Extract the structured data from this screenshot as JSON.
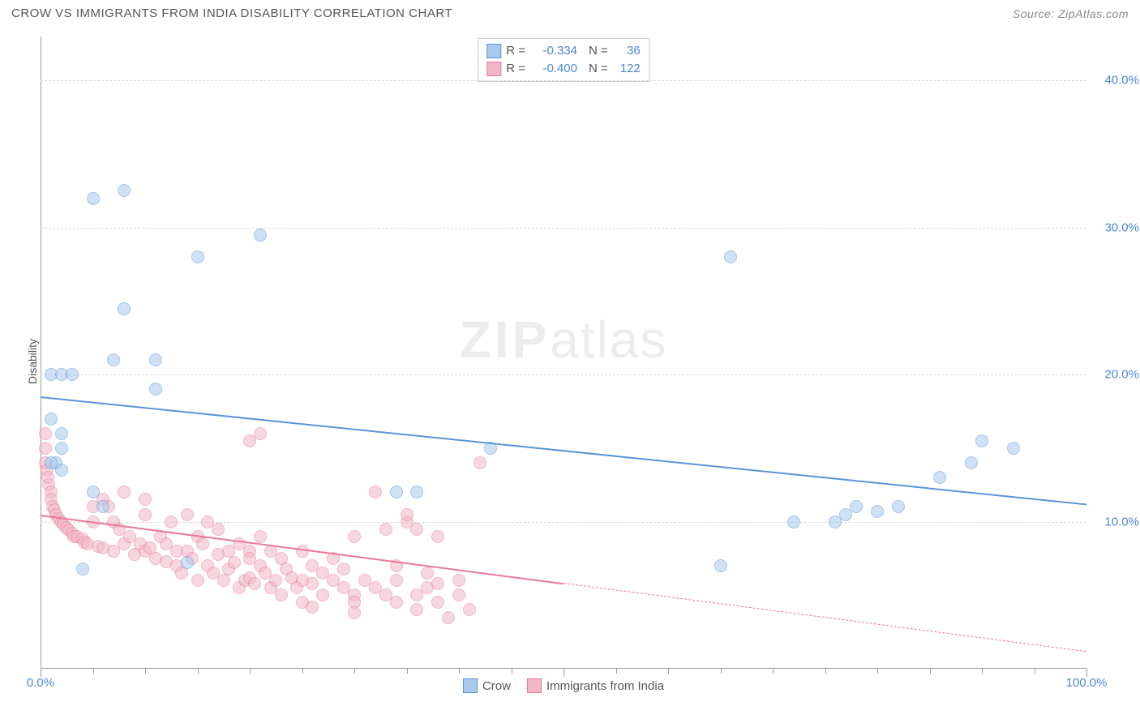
{
  "title": "CROW VS IMMIGRANTS FROM INDIA DISABILITY CORRELATION CHART",
  "source_label": "Source: ZipAtlas.com",
  "watermark_zip": "ZIP",
  "watermark_atlas": "atlas",
  "ylabel": "Disability",
  "chart": {
    "type": "scatter",
    "background_color": "#ffffff",
    "grid_color": "#d8d8d8",
    "axis_color": "#999999",
    "tick_label_color": "#4a86d8",
    "xlim": [
      0,
      100
    ],
    "ylim": [
      0,
      43
    ],
    "yticks": [
      {
        "v": 10,
        "label": "10.0%"
      },
      {
        "v": 20,
        "label": "20.0%"
      },
      {
        "v": 30,
        "label": "30.0%"
      },
      {
        "v": 40,
        "label": "40.0%"
      }
    ],
    "xticks_major": [
      0,
      50,
      100
    ],
    "xticks_minor": [
      5,
      10,
      15,
      20,
      25,
      30,
      35,
      40,
      45,
      55,
      60,
      65,
      70,
      75,
      80,
      85,
      90,
      95
    ],
    "xtick_labels": [
      {
        "v": 0,
        "label": "0.0%"
      },
      {
        "v": 100,
        "label": "100.0%"
      }
    ],
    "series": [
      {
        "name": "Crow",
        "fill": "#a8c9ed",
        "border": "#5a94d6",
        "R": "-0.334",
        "N": "36",
        "trend": {
          "x1": 0,
          "y1": 18.5,
          "x2": 100,
          "y2": 11.2,
          "solid_until": 100
        },
        "points": [
          [
            1,
            17
          ],
          [
            1,
            20
          ],
          [
            2,
            20
          ],
          [
            3,
            20
          ],
          [
            1.5,
            14
          ],
          [
            2,
            16
          ],
          [
            2,
            15
          ],
          [
            5,
            32
          ],
          [
            8,
            32.5
          ],
          [
            7,
            21
          ],
          [
            8,
            24.5
          ],
          [
            11,
            21
          ],
          [
            11,
            19
          ],
          [
            15,
            28
          ],
          [
            21,
            29.5
          ],
          [
            5,
            12
          ],
          [
            6,
            11
          ],
          [
            14,
            7.2
          ],
          [
            4,
            6.8
          ],
          [
            34,
            12
          ],
          [
            36,
            12
          ],
          [
            43,
            15
          ],
          [
            66,
            28
          ],
          [
            65,
            7
          ],
          [
            72,
            10
          ],
          [
            76,
            10
          ],
          [
            77,
            10.5
          ],
          [
            80,
            10.7
          ],
          [
            82,
            11
          ],
          [
            86,
            13
          ],
          [
            89,
            14
          ],
          [
            90,
            15.5
          ],
          [
            93,
            15
          ],
          [
            78,
            11
          ],
          [
            1,
            14
          ],
          [
            2,
            13.5
          ]
        ]
      },
      {
        "name": "Immigrants from India",
        "fill": "#f2b7c6",
        "border": "#e77a9a",
        "R": "-0.400",
        "N": "122",
        "trend": {
          "x1": 0,
          "y1": 10.5,
          "x2": 100,
          "y2": 1.2,
          "solid_until": 50
        },
        "points": [
          [
            0.5,
            16
          ],
          [
            0.5,
            15
          ],
          [
            0.5,
            14
          ],
          [
            0.6,
            13.5
          ],
          [
            0.7,
            13
          ],
          [
            0.8,
            12.5
          ],
          [
            1,
            12
          ],
          [
            1,
            11.5
          ],
          [
            1.2,
            11
          ],
          [
            1.3,
            10.8
          ],
          [
            1.5,
            10.5
          ],
          [
            1.7,
            10.2
          ],
          [
            2,
            10
          ],
          [
            2.2,
            9.8
          ],
          [
            2.5,
            9.6
          ],
          [
            2.7,
            9.4
          ],
          [
            3,
            9.2
          ],
          [
            3.2,
            9
          ],
          [
            3.5,
            9
          ],
          [
            4,
            8.8
          ],
          [
            4.2,
            8.6
          ],
          [
            4.5,
            8.5
          ],
          [
            5,
            10
          ],
          [
            5,
            11
          ],
          [
            5.5,
            8.3
          ],
          [
            6,
            8.2
          ],
          [
            6,
            11.5
          ],
          [
            6.5,
            11
          ],
          [
            7,
            8
          ],
          [
            7,
            10
          ],
          [
            7.5,
            9.5
          ],
          [
            8,
            12
          ],
          [
            8,
            8.5
          ],
          [
            8.5,
            9
          ],
          [
            9,
            7.8
          ],
          [
            9.5,
            8.5
          ],
          [
            10,
            10.5
          ],
          [
            10,
            11.5
          ],
          [
            10,
            8
          ],
          [
            10.5,
            8.2
          ],
          [
            11,
            7.5
          ],
          [
            11.5,
            9
          ],
          [
            12,
            8.5
          ],
          [
            12,
            7.3
          ],
          [
            12.5,
            10
          ],
          [
            13,
            7
          ],
          [
            13,
            8
          ],
          [
            13.5,
            6.5
          ],
          [
            14,
            10.5
          ],
          [
            14,
            8
          ],
          [
            14.5,
            7.5
          ],
          [
            15,
            9
          ],
          [
            15,
            6
          ],
          [
            15.5,
            8.5
          ],
          [
            16,
            7
          ],
          [
            16,
            10
          ],
          [
            16.5,
            6.5
          ],
          [
            17,
            7.8
          ],
          [
            17,
            9.5
          ],
          [
            17.5,
            6
          ],
          [
            18,
            8
          ],
          [
            18,
            6.8
          ],
          [
            18.5,
            7.2
          ],
          [
            19,
            5.5
          ],
          [
            19,
            8.5
          ],
          [
            19.5,
            6
          ],
          [
            20,
            8
          ],
          [
            20,
            7.5
          ],
          [
            20,
            6.2
          ],
          [
            20.5,
            5.8
          ],
          [
            21,
            7
          ],
          [
            21,
            9
          ],
          [
            21.5,
            6.5
          ],
          [
            22,
            5.5
          ],
          [
            22,
            8
          ],
          [
            22.5,
            6
          ],
          [
            23,
            7.5
          ],
          [
            23,
            5
          ],
          [
            23.5,
            6.8
          ],
          [
            24,
            6.2
          ],
          [
            24.5,
            5.5
          ],
          [
            25,
            8
          ],
          [
            25,
            6
          ],
          [
            25,
            4.5
          ],
          [
            26,
            7
          ],
          [
            26,
            5.8
          ],
          [
            27,
            6.5
          ],
          [
            27,
            5
          ],
          [
            28,
            6
          ],
          [
            28,
            7.5
          ],
          [
            29,
            5.5
          ],
          [
            29,
            6.8
          ],
          [
            30,
            9
          ],
          [
            30,
            5
          ],
          [
            30,
            4.5
          ],
          [
            31,
            6
          ],
          [
            32,
            5.5
          ],
          [
            32,
            12
          ],
          [
            33,
            5
          ],
          [
            33,
            9.5
          ],
          [
            34,
            4.5
          ],
          [
            34,
            6
          ],
          [
            35,
            10
          ],
          [
            36,
            5
          ],
          [
            36,
            4
          ],
          [
            37,
            5.5
          ],
          [
            37,
            6.5
          ],
          [
            38,
            9
          ],
          [
            38,
            4.5
          ],
          [
            39,
            3.5
          ],
          [
            40,
            5
          ],
          [
            40,
            6
          ],
          [
            41,
            4
          ],
          [
            42,
            14
          ],
          [
            21,
            16
          ],
          [
            35,
            10.5
          ],
          [
            36,
            9.5
          ],
          [
            38,
            5.8
          ],
          [
            26,
            4.2
          ],
          [
            30,
            3.8
          ],
          [
            34,
            7
          ],
          [
            20,
            15.5
          ]
        ]
      }
    ]
  },
  "legend_bottom": [
    {
      "label": "Crow",
      "fill": "#a8c9ed",
      "border": "#5a94d6"
    },
    {
      "label": "Immigrants from India",
      "fill": "#f2b7c6",
      "border": "#e77a9a"
    }
  ]
}
